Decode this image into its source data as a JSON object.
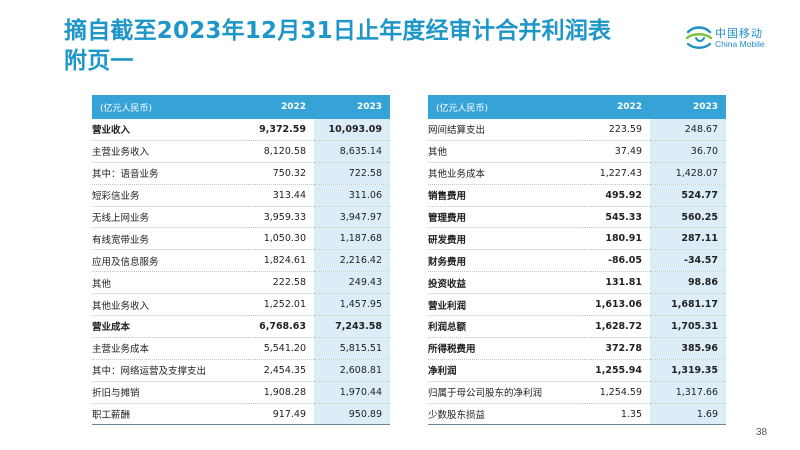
{
  "title": {
    "line1": "摘自截至2023年12月31日止年度经审计合并利润表",
    "line2": "附页一"
  },
  "logo": {
    "cn": "中国移动",
    "en": "China Mobile"
  },
  "tables": {
    "left": {
      "header": {
        "label": "(亿元人民币)",
        "y2022": "2022",
        "y2023": "2023"
      },
      "rows": [
        {
          "label": "营业收入",
          "v2022": "9,372.59",
          "v2023": "10,093.09",
          "level": 0,
          "bold": true
        },
        {
          "label": "主营业务收入",
          "v2022": "8,120.58",
          "v2023": "8,635.14",
          "level": 1,
          "bold": false
        },
        {
          "label": "其中：语音业务",
          "v2022": "750.32",
          "v2023": "722.58",
          "level": 1,
          "bold": false
        },
        {
          "label": "短彩信业务",
          "v2022": "313.44",
          "v2023": "311.06",
          "level": 2,
          "bold": false
        },
        {
          "label": "无线上网业务",
          "v2022": "3,959.33",
          "v2023": "3,947.97",
          "level": 2,
          "bold": false
        },
        {
          "label": "有线宽带业务",
          "v2022": "1,050.30",
          "v2023": "1,187.68",
          "level": 2,
          "bold": false
        },
        {
          "label": "应用及信息服务",
          "v2022": "1,824.61",
          "v2023": "2,216.42",
          "level": 2,
          "bold": false
        },
        {
          "label": "其他",
          "v2022": "222.58",
          "v2023": "249.43",
          "level": 2,
          "bold": false
        },
        {
          "label": "其他业务收入",
          "v2022": "1,252.01",
          "v2023": "1,457.95",
          "level": 1,
          "bold": false
        },
        {
          "label": "营业成本",
          "v2022": "6,768.63",
          "v2023": "7,243.58",
          "level": 0,
          "bold": true
        },
        {
          "label": "主营业务成本",
          "v2022": "5,541.20",
          "v2023": "5,815.51",
          "level": 1,
          "bold": false
        },
        {
          "label": "其中：网络运营及支撑支出",
          "v2022": "2,454.35",
          "v2023": "2,608.81",
          "level": 1,
          "bold": false
        },
        {
          "label": "折旧与摊销",
          "v2022": "1,908.28",
          "v2023": "1,970.44",
          "level": 2,
          "bold": false
        },
        {
          "label": "职工薪酬",
          "v2022": "917.49",
          "v2023": "950.89",
          "level": 2,
          "bold": false
        }
      ]
    },
    "right": {
      "header": {
        "label": "(亿元人民币)",
        "y2022": "2022",
        "y2023": "2023"
      },
      "rows": [
        {
          "label": "网间结算支出",
          "v2022": "223.59",
          "v2023": "248.67",
          "level": 2,
          "bold": false
        },
        {
          "label": "其他",
          "v2022": "37.49",
          "v2023": "36.70",
          "level": 2,
          "bold": false
        },
        {
          "label": "其他业务成本",
          "v2022": "1,227.43",
          "v2023": "1,428.07",
          "level": 1,
          "bold": false
        },
        {
          "label": "销售费用",
          "v2022": "495.92",
          "v2023": "524.77",
          "level": 0,
          "bold": true
        },
        {
          "label": "管理费用",
          "v2022": "545.33",
          "v2023": "560.25",
          "level": 0,
          "bold": true
        },
        {
          "label": "研发费用",
          "v2022": "180.91",
          "v2023": "287.11",
          "level": 0,
          "bold": true
        },
        {
          "label": "财务费用",
          "v2022": "-86.05",
          "v2023": "-34.57",
          "level": 0,
          "bold": true
        },
        {
          "label": "投资收益",
          "v2022": "131.81",
          "v2023": "98.86",
          "level": 0,
          "bold": true
        },
        {
          "label": "营业利润",
          "v2022": "1,613.06",
          "v2023": "1,681.17",
          "level": 0,
          "bold": true
        },
        {
          "label": "利润总额",
          "v2022": "1,628.72",
          "v2023": "1,705.31",
          "level": 0,
          "bold": true
        },
        {
          "label": "所得税费用",
          "v2022": "372.78",
          "v2023": "385.96",
          "level": 0,
          "bold": true
        },
        {
          "label": "净利润",
          "v2022": "1,255.94",
          "v2023": "1,319.35",
          "level": 0,
          "bold": true
        },
        {
          "label": "归属于母公司股东的净利润",
          "v2022": "1,254.59",
          "v2023": "1,317.66",
          "level": 1,
          "bold": false
        },
        {
          "label": "少数股东损益",
          "v2022": "1.35",
          "v2023": "1.69",
          "level": 1,
          "bold": false
        }
      ]
    }
  },
  "page_number": "38",
  "colors": {
    "title": "#1f96c8",
    "header_bg": "#36a3d6",
    "highlight_col": "#dcedf7"
  }
}
